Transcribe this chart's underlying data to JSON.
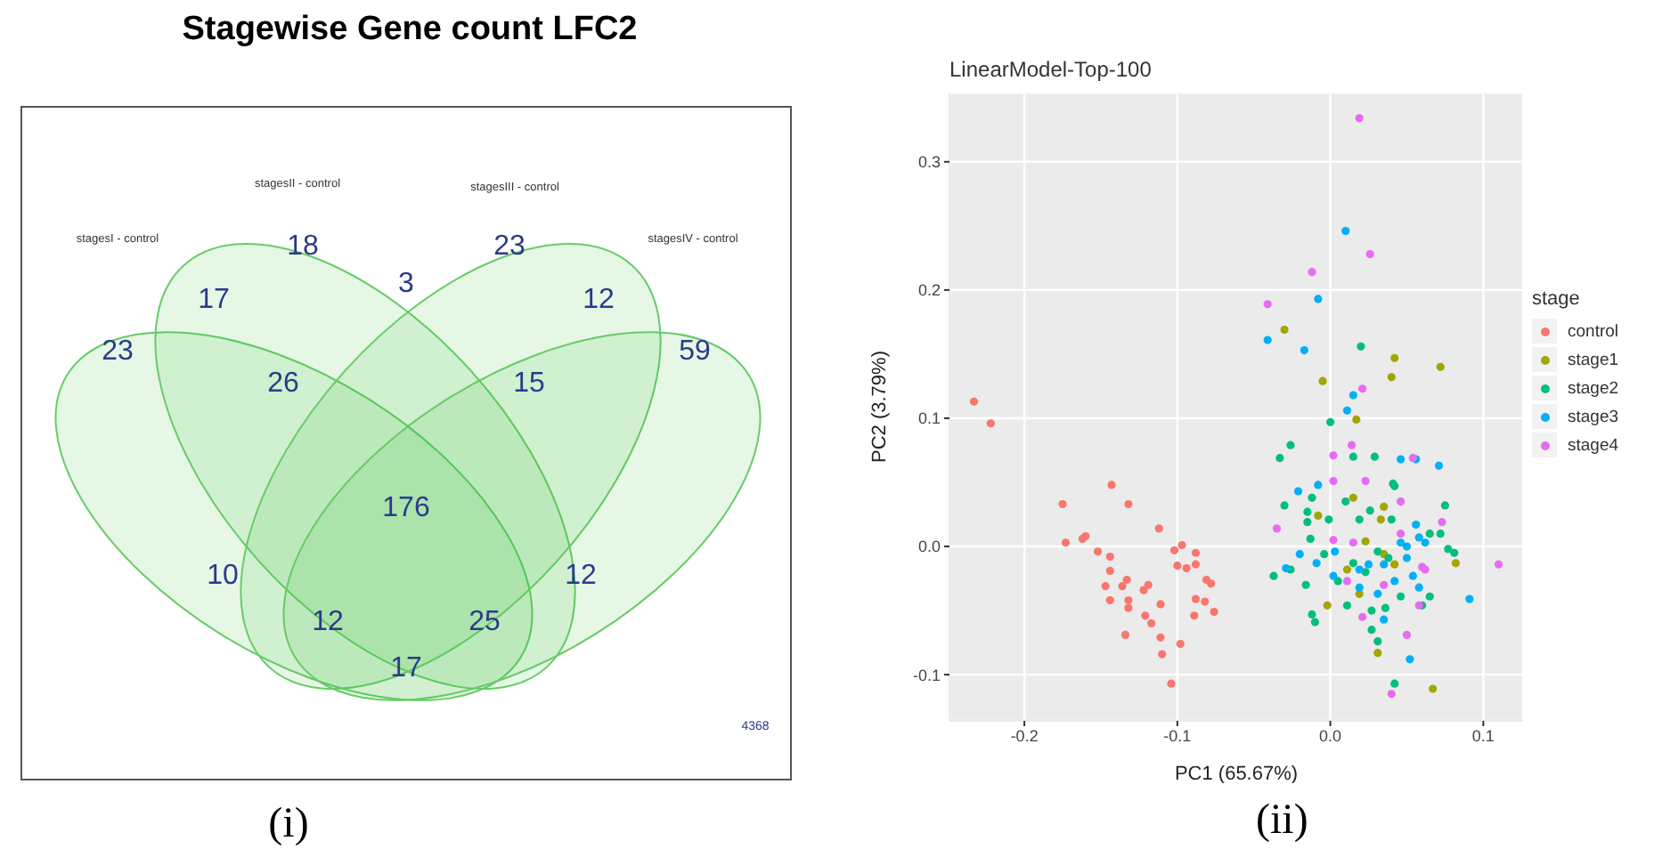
{
  "chart_data": [
    {
      "type": "other",
      "title": "Stagewise Gene count LFC2",
      "categories": [
        "stagesI - control",
        "stagesII - control",
        "stagesIII - control",
        "stagesIV - control"
      ],
      "annotations": [
        "23",
        "18",
        "17",
        "3",
        "23",
        "12",
        "59",
        "26",
        "15",
        "176",
        "10",
        "12",
        "25",
        "12",
        "17",
        "4368",
        "(i)"
      ]
    },
    {
      "type": "scatter",
      "title": "LinearModel-Top-100",
      "xlabel": "PC1 (65.67%)",
      "ylabel": "PC2 (3.79%)",
      "legend_title": "stage",
      "legend": "right",
      "grid": true,
      "marker": "circle",
      "xlim": [
        -0.249,
        0.126
      ],
      "xticks": [
        -0.2,
        -0.1,
        {
          "value": 0,
          "label": "0.0"
        },
        0.1
      ],
      "ylim": [
        -0.136,
        0.354
      ],
      "yticks": [
        {
          "value": -0.1,
          "label": "-0.1"
        },
        {
          "value": 0,
          "label": "0.0"
        },
        0.1,
        0.2,
        0.3
      ],
      "annotations": [
        "(ii)"
      ],
      "series": [
        {
          "name": "control",
          "color": "#f8766d",
          "x": [
            -0.233,
            -0.222,
            -0.175,
            -0.143,
            -0.132,
            -0.173,
            -0.162,
            -0.16,
            -0.152,
            -0.144,
            -0.144,
            -0.147,
            -0.144,
            -0.136,
            -0.133,
            -0.132,
            -0.132,
            -0.122,
            -0.119,
            -0.121,
            -0.117,
            -0.134,
            -0.111,
            -0.112,
            -0.102,
            -0.097,
            -0.1,
            -0.094,
            -0.088,
            -0.088,
            -0.081,
            -0.078,
            -0.088,
            -0.082,
            -0.089,
            -0.076,
            -0.111,
            -0.098,
            -0.11,
            -0.104
          ],
          "values": [
            0.113,
            0.096,
            0.033,
            0.048,
            0.033,
            0.003,
            0.006,
            0.008,
            -0.004,
            -0.008,
            -0.019,
            -0.031,
            -0.042,
            -0.031,
            -0.026,
            -0.042,
            -0.048,
            -0.034,
            -0.03,
            -0.054,
            -0.06,
            -0.069,
            -0.045,
            0.014,
            -0.003,
            0.001,
            -0.015,
            -0.017,
            -0.005,
            -0.014,
            -0.026,
            -0.029,
            -0.041,
            -0.043,
            -0.054,
            -0.051,
            -0.071,
            -0.076,
            -0.084,
            -0.107
          ]
        },
        {
          "name": "stage1",
          "color": "#a3a500",
          "x": [
            -0.03,
            0.042,
            0.072,
            0.04,
            -0.005,
            0.017,
            0.015,
            0.035,
            0.033,
            -0.008,
            0.023,
            0.035,
            0.011,
            0.019,
            -0.002,
            0.031,
            0.067,
            0.082,
            0.042
          ],
          "values": [
            0.169,
            0.147,
            0.14,
            0.132,
            0.129,
            0.099,
            0.038,
            0.031,
            0.021,
            0.024,
            0.004,
            -0.006,
            -0.018,
            -0.037,
            -0.046,
            -0.083,
            -0.111,
            -0.013,
            -0.014
          ]
        },
        {
          "name": "stage2",
          "color": "#00bf7d",
          "x": [
            0.02,
            0,
            -0.033,
            -0.026,
            0.015,
            0.029,
            0.041,
            0.042,
            -0.03,
            -0.015,
            -0.012,
            -0.001,
            0.01,
            0.019,
            0.026,
            0.04,
            0.075,
            0.065,
            0.072,
            0.077,
            0.081,
            -0.037,
            -0.026,
            -0.016,
            -0.013,
            -0.004,
            0.005,
            0.015,
            0.023,
            0.031,
            0.038,
            -0.012,
            -0.01,
            0.011,
            0.027,
            0.036,
            0.046,
            0.06,
            0.065,
            0.027,
            0.031,
            0.042,
            -0.015
          ],
          "values": [
            0.156,
            0.097,
            0.069,
            0.079,
            0.07,
            0.07,
            0.049,
            0.047,
            0.032,
            0.027,
            0.038,
            0.021,
            0.035,
            0.021,
            0.028,
            0.021,
            0.032,
            0.01,
            0.01,
            -0.002,
            -0.005,
            -0.023,
            -0.018,
            -0.03,
            0.006,
            -0.006,
            -0.027,
            -0.013,
            -0.02,
            -0.004,
            -0.009,
            -0.053,
            -0.059,
            -0.046,
            -0.05,
            -0.048,
            -0.039,
            -0.046,
            -0.039,
            -0.065,
            -0.074,
            -0.107,
            0.019
          ]
        },
        {
          "name": "stage3",
          "color": "#00b0f6",
          "x": [
            0.01,
            -0.008,
            -0.041,
            -0.017,
            0.015,
            0.011,
            -0.008,
            -0.021,
            0.046,
            0.056,
            0.071,
            0.056,
            0.046,
            0.05,
            0.058,
            0.062,
            -0.029,
            -0.02,
            -0.009,
            0.003,
            0.019,
            0.025,
            0.035,
            0.042,
            0.05,
            0.054,
            0.058,
            0.091,
            0.031,
            0.035,
            0.052,
            0.019,
            0.002
          ],
          "values": [
            0.246,
            0.193,
            0.161,
            0.153,
            0.118,
            0.106,
            0.048,
            0.043,
            0.068,
            0.068,
            0.063,
            0.017,
            0.003,
            0,
            0.007,
            0.003,
            -0.017,
            -0.006,
            -0.013,
            -0.004,
            -0.018,
            -0.014,
            -0.014,
            -0.027,
            -0.009,
            -0.023,
            -0.032,
            -0.041,
            -0.037,
            -0.057,
            -0.088,
            -0.032,
            -0.023
          ]
        },
        {
          "name": "stage4",
          "color": "#e76bf3",
          "x": [
            0.019,
            0.026,
            -0.012,
            -0.041,
            0.021,
            0.002,
            0.014,
            0.054,
            0.002,
            0.023,
            0.046,
            0.073,
            -0.035,
            0.002,
            0.015,
            0.046,
            0.06,
            0.062,
            0.035,
            0.11,
            0.021,
            0.058,
            0.05,
            0.04,
            0.011
          ],
          "values": [
            0.334,
            0.228,
            0.214,
            0.189,
            0.123,
            0.071,
            0.079,
            0.069,
            0.051,
            0.051,
            0.035,
            0.019,
            0.014,
            0.005,
            0.003,
            0.01,
            -0.016,
            -0.018,
            -0.03,
            -0.014,
            -0.055,
            -0.046,
            -0.069,
            -0.115,
            -0.027
          ]
        }
      ]
    }
  ]
}
